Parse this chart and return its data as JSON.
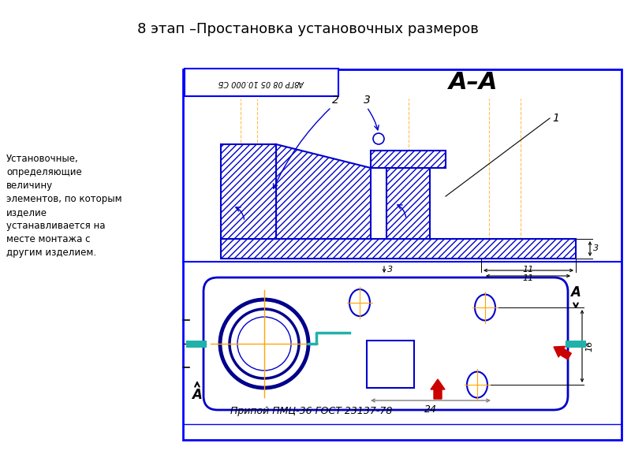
{
  "title": "8 этап –Простановка установочных размеров",
  "title_fontsize": 13,
  "left_text": "Установочные,\nопределяющие\nвеличину\nэлементов, по которым\nизделие\nустанавливается на\nместе монтажа с\nдругим изделием.",
  "stamp_text": "А8ГР 08 05 10.000 СБ",
  "section_label": "А–А",
  "bottom_text": "Припой ПМЦ-36 ГОСТ 23137-78",
  "dim_3": "3",
  "dim_11": "11",
  "dim_24": "24",
  "dim_16": "16",
  "label_1": "1",
  "label_2": "2",
  "label_3": "3",
  "label_A": "А",
  "blue": "#0000CC",
  "dark_blue": "#00008B",
  "teal": "#20B2AA",
  "red": "#CC0000",
  "orange": "#FFA500",
  "bg": "#FFFFFF",
  "border_color": "#0000FF"
}
